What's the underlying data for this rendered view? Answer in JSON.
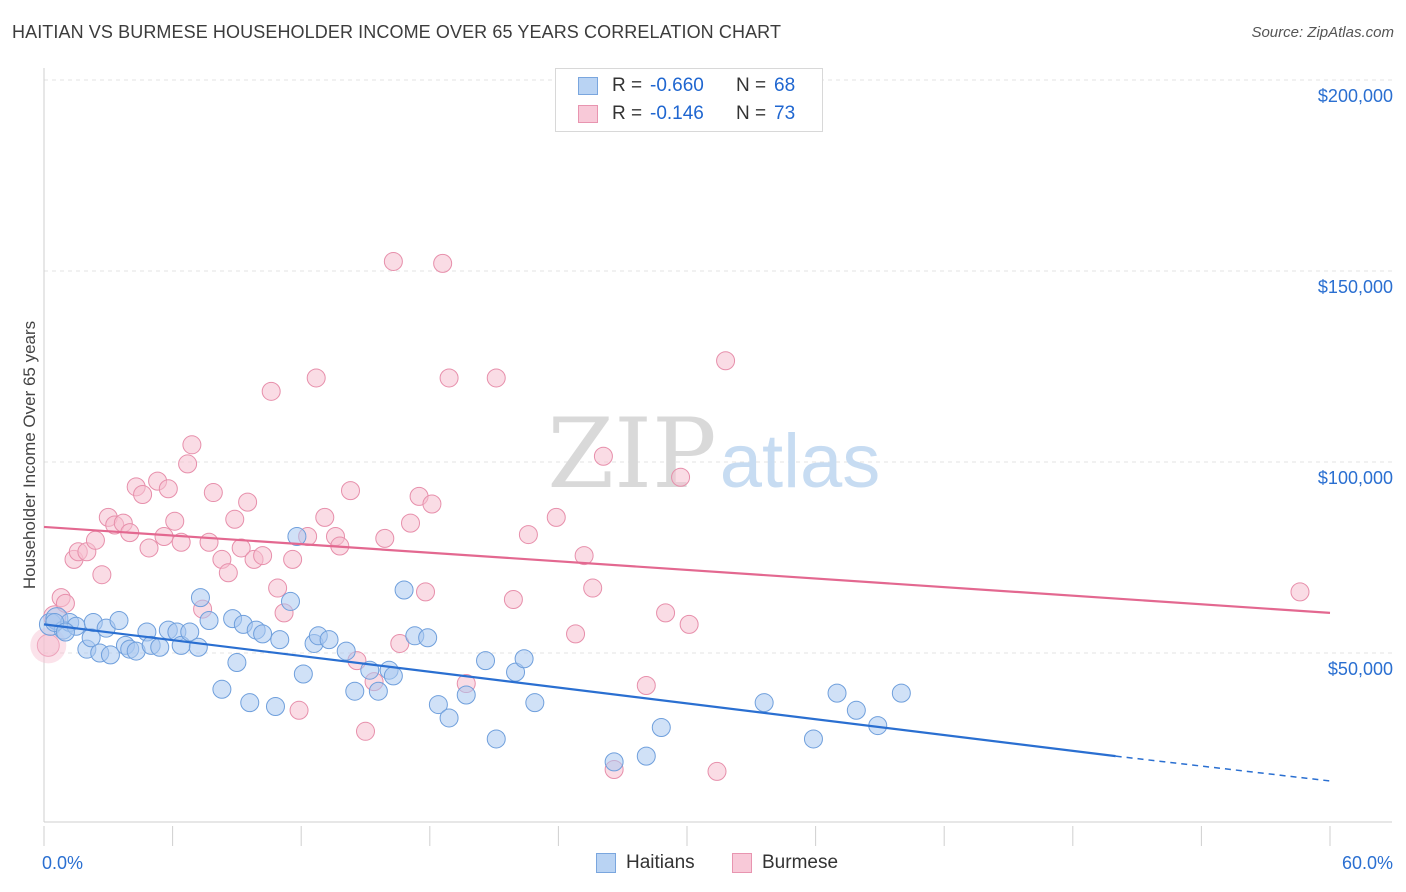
{
  "title": "HAITIAN VS BURMESE HOUSEHOLDER INCOME OVER 65 YEARS CORRELATION CHART",
  "source": "Source: ZipAtlas.com",
  "watermark": {
    "zip": "ZIP",
    "atlas": "atlas"
  },
  "colors": {
    "haitians_fill": "#a9c8f0",
    "haitians_stroke": "#6f9fdc",
    "haitians_line": "#2a6fd1",
    "burmese_fill": "#f6bfd0",
    "burmese_stroke": "#e78fab",
    "burmese_line": "#e36890",
    "accent_text": "#2a6fd1"
  },
  "legend_top": {
    "rows": [
      {
        "r_label": "R =",
        "r_value": "-0.660",
        "n_label": "N =",
        "n_value": "68"
      },
      {
        "r_label": "R =",
        "r_value": "-0.146",
        "n_label": "N =",
        "n_value": "73"
      }
    ]
  },
  "legend_bottom": {
    "haitians": "Haitians",
    "burmese": "Burmese"
  },
  "chart_data": {
    "type": "scatter",
    "title": "HAITIAN VS BURMESE HOUSEHOLDER INCOME OVER 65 YEARS CORRELATION CHART",
    "xlabel": "",
    "ylabel": "Householder Income Over 65 years",
    "xlim": [
      0,
      60
    ],
    "ylim": [
      5000,
      210000
    ],
    "x_tick_labels": [
      "0.0%",
      "60.0%"
    ],
    "y_tick_labels": [
      "$200,000",
      "$150,000",
      "$100,000",
      "$50,000"
    ],
    "y_ticks": [
      200000,
      150000,
      100000,
      50000
    ],
    "grid": true,
    "legend_position": "top-center",
    "series": [
      {
        "name": "Haitians",
        "r": -0.66,
        "n": 68,
        "trend": {
          "x0": 0,
          "y0": 57500,
          "x1": 50,
          "y1": 23000,
          "dashed_to_x": 60,
          "dashed_to_y": 16500
        },
        "points": [
          [
            0.3,
            57500
          ],
          [
            0.6,
            59000
          ],
          [
            0.9,
            56000
          ],
          [
            1.2,
            58000
          ],
          [
            1.5,
            57000
          ],
          [
            2.0,
            51000
          ],
          [
            2.2,
            54000
          ],
          [
            2.3,
            58000
          ],
          [
            2.6,
            50000
          ],
          [
            2.9,
            56500
          ],
          [
            3.1,
            49500
          ],
          [
            3.5,
            58500
          ],
          [
            3.8,
            52000
          ],
          [
            4.0,
            51000
          ],
          [
            4.3,
            50500
          ],
          [
            4.8,
            55500
          ],
          [
            5.0,
            52000
          ],
          [
            5.4,
            51500
          ],
          [
            5.8,
            56000
          ],
          [
            6.2,
            55500
          ],
          [
            6.4,
            52000
          ],
          [
            6.8,
            55500
          ],
          [
            7.2,
            51500
          ],
          [
            7.3,
            64500
          ],
          [
            7.7,
            58500
          ],
          [
            8.3,
            40500
          ],
          [
            8.8,
            59000
          ],
          [
            9.0,
            47500
          ],
          [
            9.3,
            57500
          ],
          [
            9.6,
            37000
          ],
          [
            9.9,
            56000
          ],
          [
            10.2,
            55000
          ],
          [
            10.8,
            36000
          ],
          [
            11.0,
            53500
          ],
          [
            11.5,
            63500
          ],
          [
            11.8,
            80500
          ],
          [
            12.1,
            44500
          ],
          [
            12.6,
            52500
          ],
          [
            12.8,
            54500
          ],
          [
            13.3,
            53500
          ],
          [
            14.1,
            50500
          ],
          [
            14.5,
            40000
          ],
          [
            15.2,
            45500
          ],
          [
            15.6,
            40000
          ],
          [
            16.1,
            45500
          ],
          [
            16.3,
            44000
          ],
          [
            16.8,
            66500
          ],
          [
            17.3,
            54500
          ],
          [
            17.9,
            54000
          ],
          [
            18.4,
            36500
          ],
          [
            18.9,
            33000
          ],
          [
            19.7,
            39000
          ],
          [
            20.6,
            48000
          ],
          [
            21.1,
            27500
          ],
          [
            22.0,
            45000
          ],
          [
            22.4,
            48500
          ],
          [
            22.9,
            37000
          ],
          [
            26.6,
            21500
          ],
          [
            28.1,
            23000
          ],
          [
            28.8,
            30500
          ],
          [
            33.6,
            37000
          ],
          [
            35.9,
            27500
          ],
          [
            37.0,
            39500
          ],
          [
            37.9,
            35000
          ],
          [
            38.9,
            31000
          ],
          [
            40.0,
            39500
          ],
          [
            0.5,
            58000
          ],
          [
            1.0,
            55500
          ]
        ]
      },
      {
        "name": "Burmese",
        "r": -0.146,
        "n": 73,
        "trend": {
          "x0": 0,
          "y0": 83000,
          "x1": 60,
          "y1": 60500
        },
        "points": [
          [
            0.2,
            52000
          ],
          [
            0.5,
            59500
          ],
          [
            0.8,
            64500
          ],
          [
            1.0,
            63000
          ],
          [
            1.4,
            74500
          ],
          [
            1.6,
            76500
          ],
          [
            2.0,
            76500
          ],
          [
            2.4,
            79500
          ],
          [
            2.7,
            70500
          ],
          [
            3.0,
            85500
          ],
          [
            3.3,
            83500
          ],
          [
            3.7,
            84000
          ],
          [
            4.0,
            81500
          ],
          [
            4.3,
            93500
          ],
          [
            4.6,
            91500
          ],
          [
            4.9,
            77500
          ],
          [
            5.3,
            95000
          ],
          [
            5.6,
            80500
          ],
          [
            5.8,
            93000
          ],
          [
            6.1,
            84500
          ],
          [
            6.4,
            79000
          ],
          [
            6.7,
            99500
          ],
          [
            6.9,
            104500
          ],
          [
            7.4,
            61500
          ],
          [
            7.7,
            79000
          ],
          [
            7.9,
            92000
          ],
          [
            8.3,
            74500
          ],
          [
            8.6,
            71000
          ],
          [
            8.9,
            85000
          ],
          [
            9.2,
            77500
          ],
          [
            9.5,
            89500
          ],
          [
            9.8,
            74500
          ],
          [
            10.2,
            75500
          ],
          [
            10.6,
            118500
          ],
          [
            10.9,
            67000
          ],
          [
            11.2,
            60500
          ],
          [
            11.6,
            74500
          ],
          [
            11.9,
            35000
          ],
          [
            12.3,
            80500
          ],
          [
            12.7,
            122000
          ],
          [
            13.1,
            85500
          ],
          [
            13.6,
            80500
          ],
          [
            13.8,
            78000
          ],
          [
            14.3,
            92500
          ],
          [
            14.6,
            48000
          ],
          [
            15.0,
            29500
          ],
          [
            15.4,
            42500
          ],
          [
            15.9,
            80000
          ],
          [
            16.3,
            152500
          ],
          [
            16.6,
            52500
          ],
          [
            17.1,
            84000
          ],
          [
            17.5,
            91000
          ],
          [
            17.8,
            66000
          ],
          [
            18.1,
            89000
          ],
          [
            18.6,
            152000
          ],
          [
            18.9,
            122000
          ],
          [
            19.7,
            42000
          ],
          [
            21.1,
            122000
          ],
          [
            21.9,
            64000
          ],
          [
            22.6,
            81000
          ],
          [
            23.9,
            85500
          ],
          [
            24.8,
            55000
          ],
          [
            25.2,
            75500
          ],
          [
            25.6,
            67000
          ],
          [
            26.1,
            101500
          ],
          [
            26.6,
            19500
          ],
          [
            28.1,
            41500
          ],
          [
            29.0,
            60500
          ],
          [
            29.7,
            96000
          ],
          [
            30.1,
            57500
          ],
          [
            31.4,
            19000
          ],
          [
            31.8,
            126500
          ],
          [
            58.6,
            66000
          ]
        ]
      }
    ]
  }
}
